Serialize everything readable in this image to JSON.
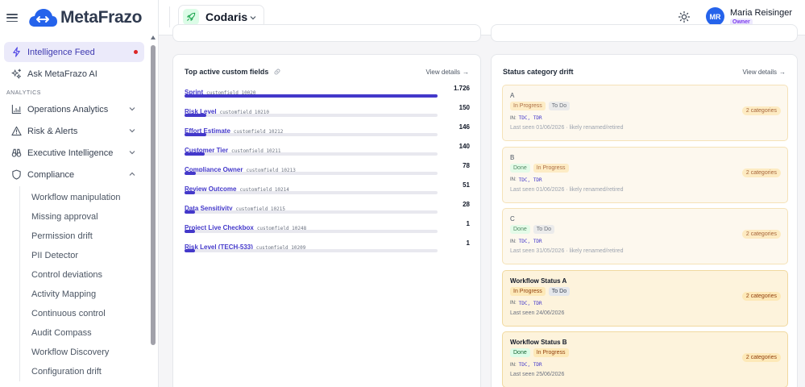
{
  "app": {
    "name": "MetaFrazo",
    "colors": {
      "accent": "#4f46e5",
      "brand": "#2563eb",
      "warning": "#f59e0b",
      "danger": "#dc2626"
    }
  },
  "sidebar": {
    "top_items": [
      {
        "label": "Intelligence Feed",
        "icon": "bolt-icon",
        "active": true,
        "has_dot": true
      },
      {
        "label": "Ask MetaFrazo AI",
        "icon": "sparkles-icon"
      }
    ],
    "section_label": "ANALYTICS",
    "groups": [
      {
        "label": "Operations Analytics",
        "icon": "chart-icon",
        "expanded": false
      },
      {
        "label": "Risk & Alerts",
        "icon": "warning-icon",
        "expanded": false
      },
      {
        "label": "Executive Intelligence",
        "icon": "binoculars-icon",
        "expanded": false
      },
      {
        "label": "Compliance",
        "icon": "shield-icon",
        "expanded": true
      }
    ],
    "compliance_items": [
      "Workflow manipulation",
      "Missing approval",
      "Permission drift",
      "PII Detector",
      "Control deviations",
      "Activity Mapping",
      "Continuous control",
      "Audit Compass",
      "Workflow Discovery",
      "Configuration drift"
    ]
  },
  "header": {
    "workspace": {
      "name": "Codaris",
      "icon": "rocket-icon"
    },
    "theme_icon": "sun-icon",
    "user": {
      "initials": "MR",
      "name": "Maria Reisinger",
      "role": "Owner"
    }
  },
  "custom_fields": {
    "title": "Top active custom fields",
    "title_icon": "link-icon",
    "view_details": "View details",
    "max_value": 1726,
    "items": [
      {
        "name": "Sprint",
        "key": "customfield_10020",
        "value": 1726,
        "display": "1.726"
      },
      {
        "name": "Risk Level",
        "key": "customfield_10210",
        "value": 150,
        "display": "150"
      },
      {
        "name": "Effort Estimate",
        "key": "customfield_10212",
        "value": 146,
        "display": "146"
      },
      {
        "name": "Customer Tier",
        "key": "customfield_10211",
        "value": 140,
        "display": "140"
      },
      {
        "name": "Compliance Owner",
        "key": "customfield_10213",
        "value": 78,
        "display": "78"
      },
      {
        "name": "Review Outcome",
        "key": "customfield_10214",
        "value": 51,
        "display": "51"
      },
      {
        "name": "Data Sensitivity",
        "key": "customfield_10215",
        "value": 28,
        "display": "28"
      },
      {
        "name": "Project Live Checkbox",
        "key": "customfield_10248",
        "value": 1,
        "display": "1"
      },
      {
        "name": "Risk Level (TECH-533)",
        "key": "customfield_10209",
        "value": 1,
        "display": "1"
      }
    ]
  },
  "status_drift": {
    "title": "Status category drift",
    "view_details": "View details",
    "items": [
      {
        "name": "A",
        "tags": [
          {
            "label": "In Progress",
            "kind": "progress"
          },
          {
            "label": "To Do",
            "kind": "todo"
          }
        ],
        "in_label": "IN:",
        "in_codes": "TDC, TDR",
        "seen": "Last seen 01/06/2026 · likely renamed/retired",
        "categories": "2 categories",
        "strong": false
      },
      {
        "name": "B",
        "tags": [
          {
            "label": "Done",
            "kind": "done"
          },
          {
            "label": "In Progress",
            "kind": "progress"
          }
        ],
        "in_label": "IN:",
        "in_codes": "TDC, TDR",
        "seen": "Last seen 01/06/2026 · likely renamed/retired",
        "categories": "2 categories",
        "strong": false
      },
      {
        "name": "C",
        "tags": [
          {
            "label": "Done",
            "kind": "done"
          },
          {
            "label": "To Do",
            "kind": "todo"
          }
        ],
        "in_label": "IN:",
        "in_codes": "TDC, TDR",
        "seen": "Last seen 31/05/2026 · likely renamed/retired",
        "categories": "2 categories",
        "strong": false
      },
      {
        "name": "Workflow Status A",
        "tags": [
          {
            "label": "In Progress",
            "kind": "progress"
          },
          {
            "label": "To Do",
            "kind": "todo"
          }
        ],
        "in_label": "IN:",
        "in_codes": "TDC, TDR",
        "seen": "Last seen 24/06/2026",
        "categories": "2 categories",
        "strong": true
      },
      {
        "name": "Workflow Status B",
        "tags": [
          {
            "label": "Done",
            "kind": "done"
          },
          {
            "label": "In Progress",
            "kind": "progress"
          }
        ],
        "in_label": "IN:",
        "in_codes": "TDC, TDR",
        "seen": "Last seen 25/06/2026",
        "categories": "2 categories",
        "strong": true
      }
    ]
  }
}
